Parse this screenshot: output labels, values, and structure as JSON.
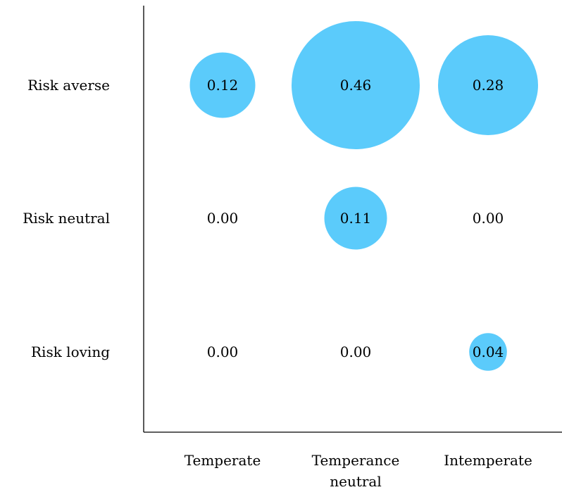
{
  "chart_data": {
    "type": "bubble-matrix",
    "title": "",
    "xlabel": "",
    "ylabel": "",
    "x_categories": [
      {
        "lines": [
          "Temperate"
        ]
      },
      {
        "lines": [
          "Temperance",
          "neutral"
        ]
      },
      {
        "lines": [
          "Intemperate"
        ]
      }
    ],
    "y_categories": [
      "Risk averse",
      "Risk neutral",
      "Risk loving"
    ],
    "cells": [
      {
        "row": 0,
        "col": 0,
        "value": 0.12,
        "label": "0.12"
      },
      {
        "row": 0,
        "col": 1,
        "value": 0.46,
        "label": "0.46"
      },
      {
        "row": 0,
        "col": 2,
        "value": 0.28,
        "label": "0.28"
      },
      {
        "row": 1,
        "col": 0,
        "value": 0.0,
        "label": "0.00"
      },
      {
        "row": 1,
        "col": 1,
        "value": 0.11,
        "label": "0.11"
      },
      {
        "row": 1,
        "col": 2,
        "value": 0.0,
        "label": "0.00"
      },
      {
        "row": 2,
        "col": 0,
        "value": 0.0,
        "label": "0.00"
      },
      {
        "row": 2,
        "col": 1,
        "value": 0.0,
        "label": "0.00"
      },
      {
        "row": 2,
        "col": 2,
        "value": 0.04,
        "label": "0.04"
      }
    ],
    "bubble_color": "#5BCBFB",
    "axis_color": "#000000",
    "grid": false,
    "legend": "none"
  }
}
